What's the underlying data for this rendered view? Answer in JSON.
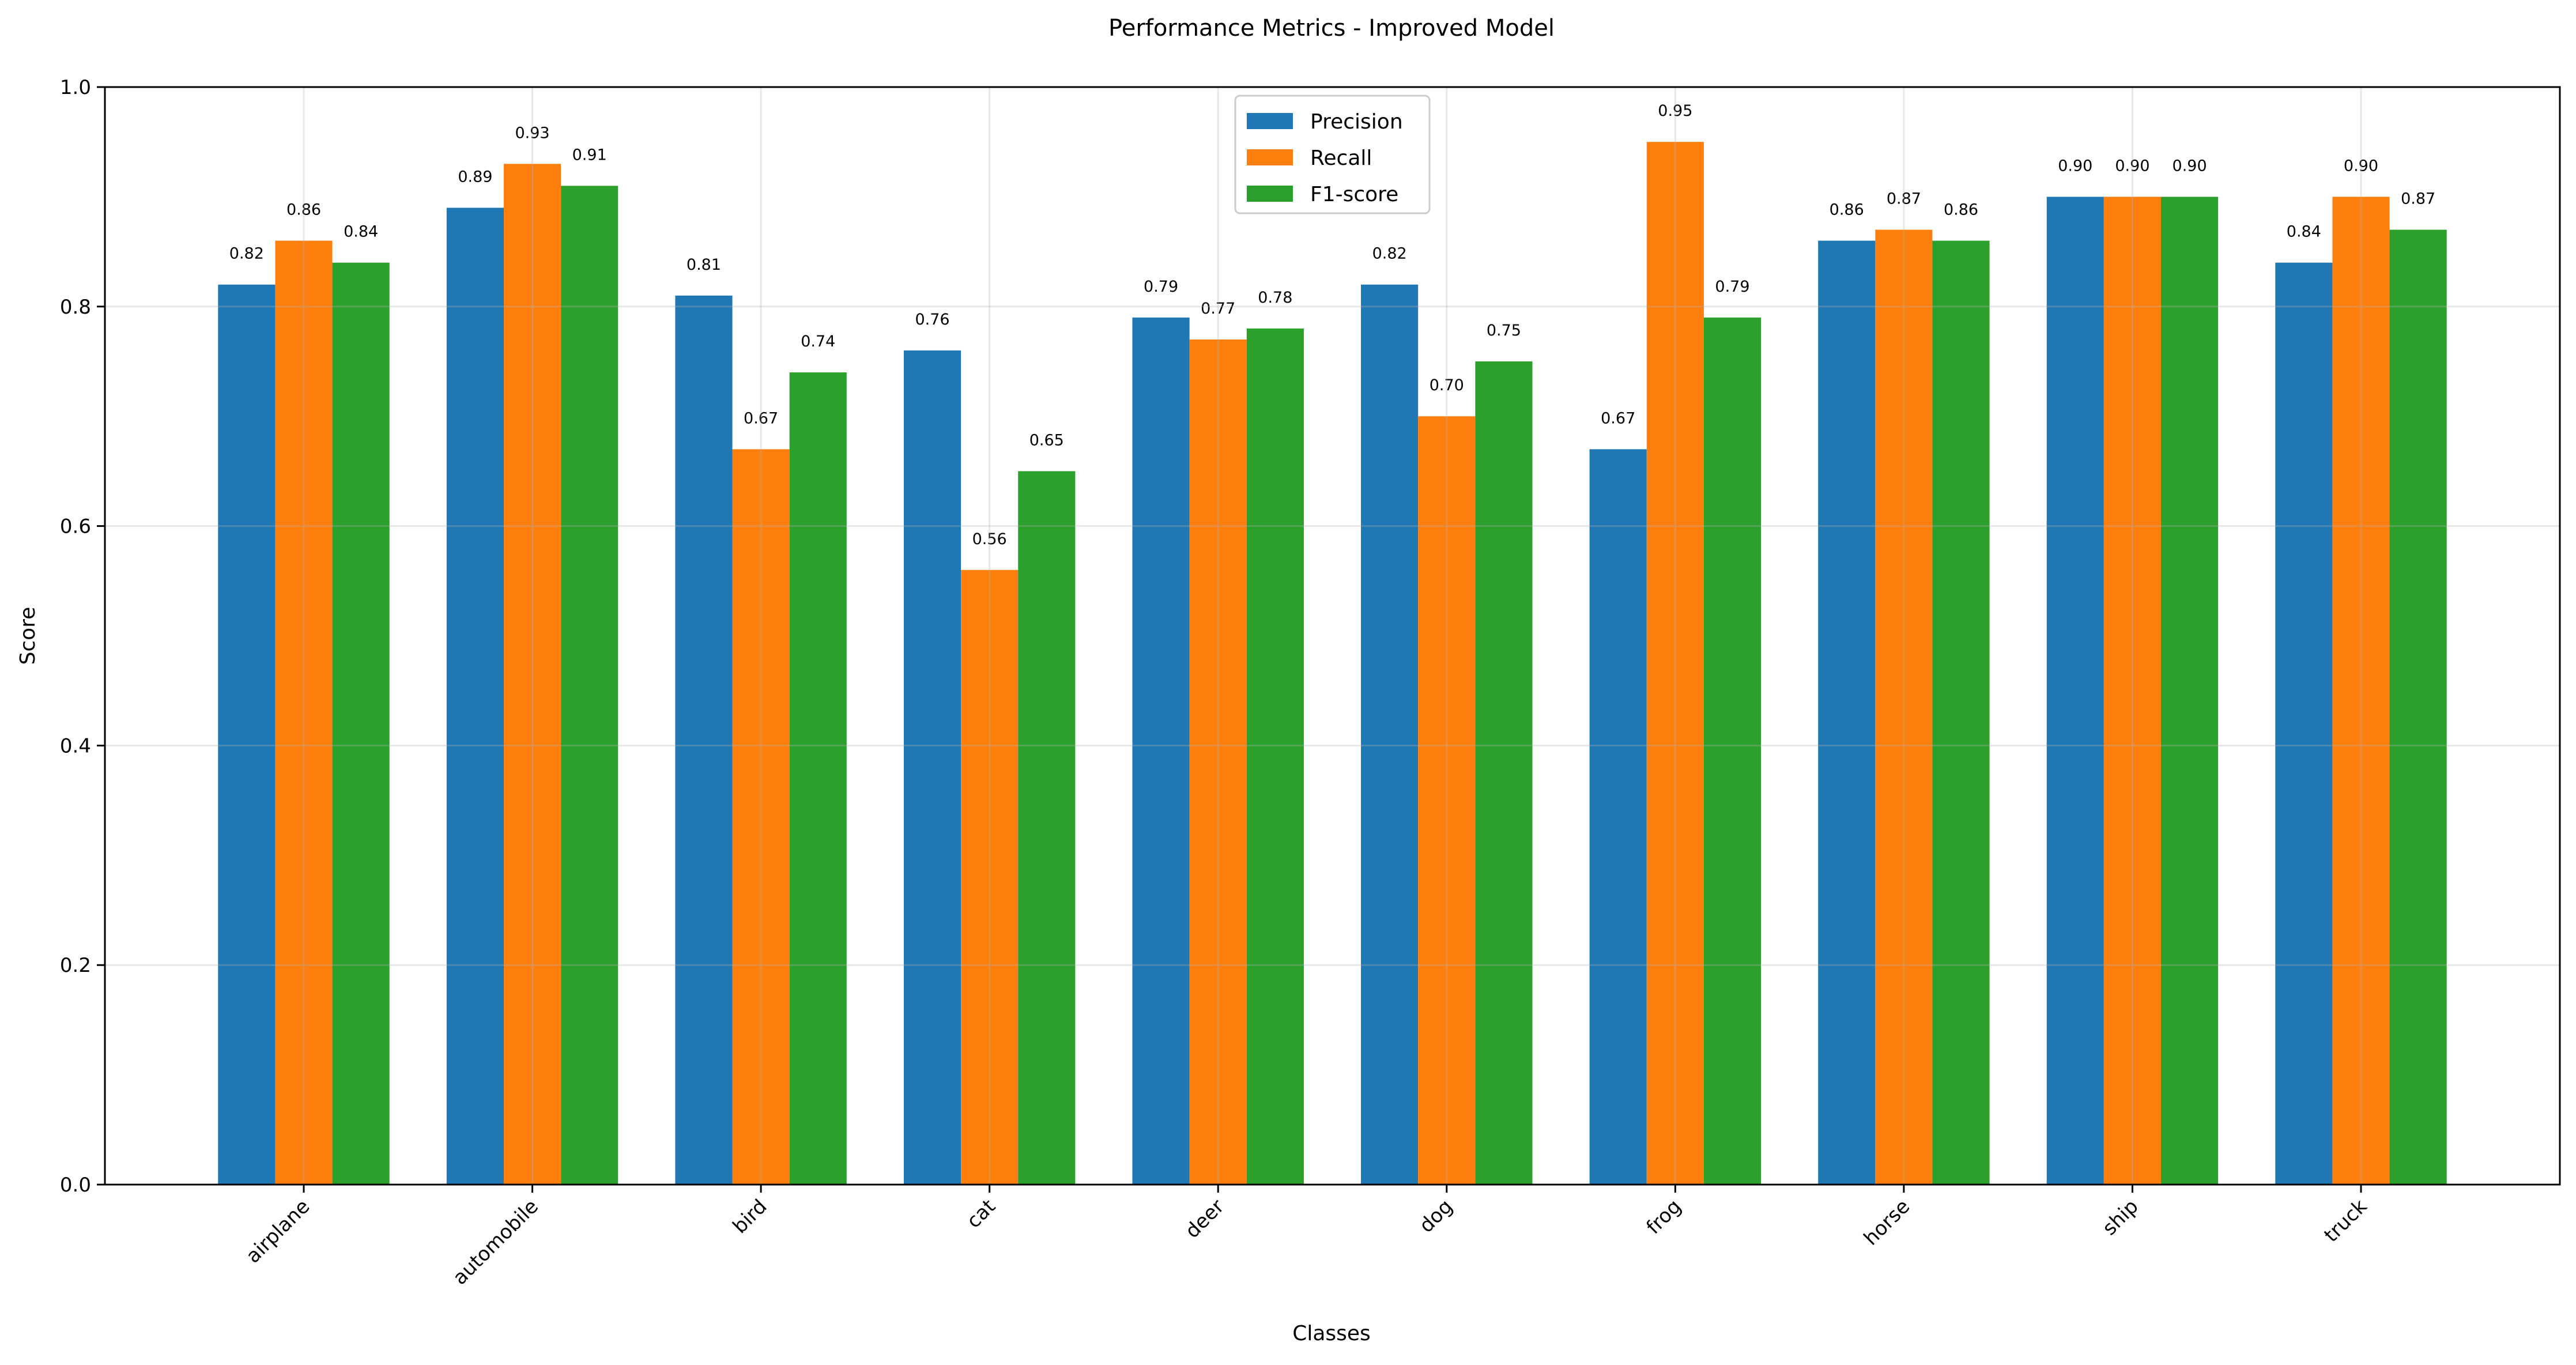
{
  "chart_data": {
    "type": "bar",
    "title": "Performance Metrics - Improved Model",
    "xlabel": "Classes",
    "ylabel": "Score",
    "ylim": [
      0,
      1.0
    ],
    "yticks": [
      "0.0",
      "0.2",
      "0.4",
      "0.6",
      "0.8",
      "1.0"
    ],
    "grid": true,
    "legend_position": "top-center",
    "categories": [
      "airplane",
      "automobile",
      "bird",
      "cat",
      "deer",
      "dog",
      "frog",
      "horse",
      "ship",
      "truck"
    ],
    "series": [
      {
        "name": "Precision",
        "color": "#1f77b4",
        "values": [
          0.82,
          0.89,
          0.81,
          0.76,
          0.79,
          0.82,
          0.67,
          0.86,
          0.9,
          0.84
        ]
      },
      {
        "name": "Recall",
        "color": "#ff7f0e",
        "values": [
          0.86,
          0.93,
          0.67,
          0.56,
          0.77,
          0.7,
          0.95,
          0.87,
          0.9,
          0.9
        ]
      },
      {
        "name": "F1-score",
        "color": "#2ca02c",
        "values": [
          0.84,
          0.91,
          0.74,
          0.65,
          0.78,
          0.75,
          0.79,
          0.86,
          0.9,
          0.87
        ]
      }
    ]
  }
}
